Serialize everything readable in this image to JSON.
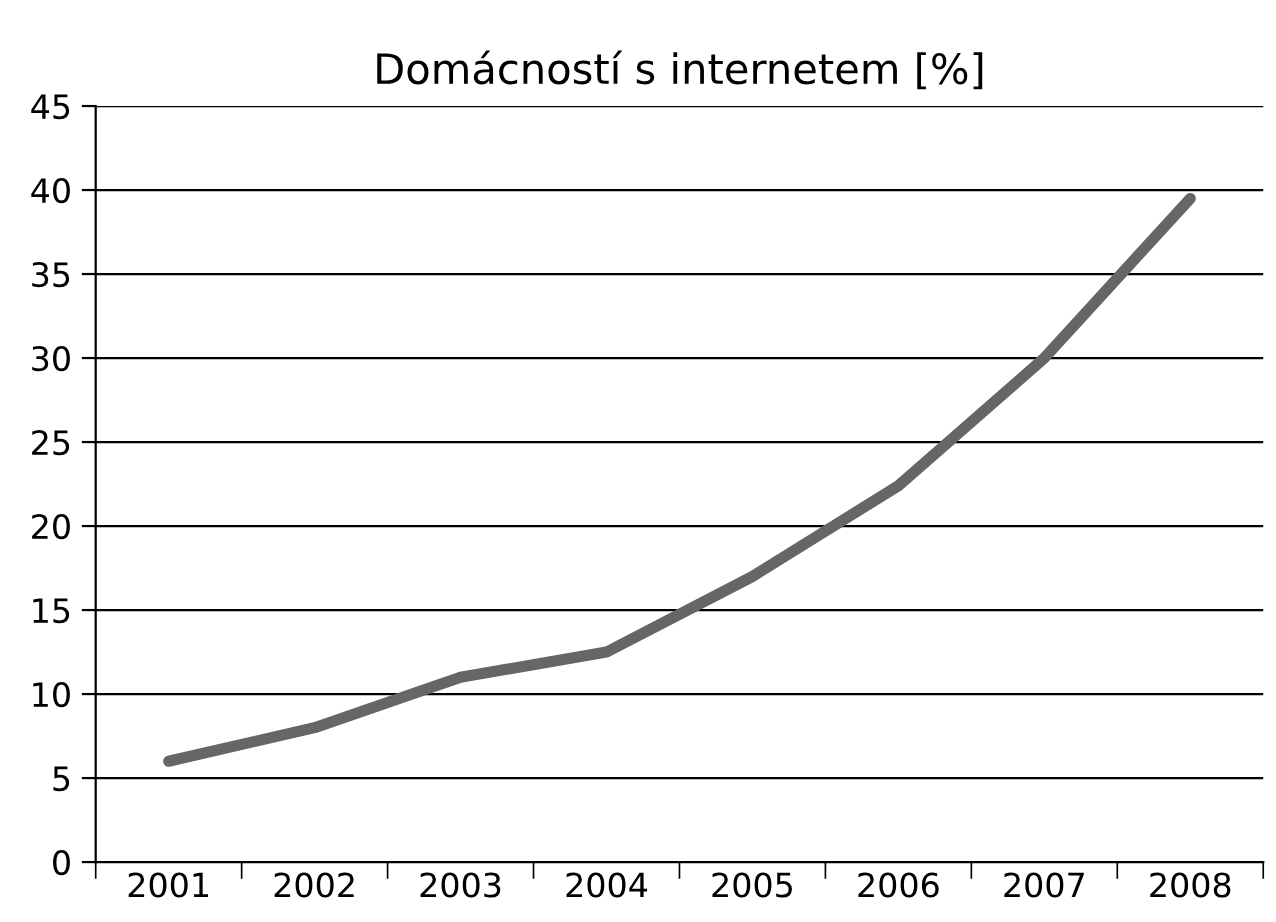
{
  "chart_data": {
    "type": "line",
    "title": "Domácností s internetem [%]",
    "categories": [
      "2001",
      "2002",
      "2003",
      "2004",
      "2005",
      "2006",
      "2007",
      "2008"
    ],
    "series": [
      {
        "color": "#666666",
        "values": [
          6,
          8,
          11,
          12.5,
          17,
          22.4,
          30,
          39.5
        ]
      }
    ],
    "ylim": [
      0,
      45
    ],
    "yticks": [
      0,
      5,
      10,
      15,
      20,
      25,
      30,
      35,
      40,
      45
    ],
    "grid": "y",
    "marker": "none",
    "line_style": "solid",
    "legend": false
  }
}
